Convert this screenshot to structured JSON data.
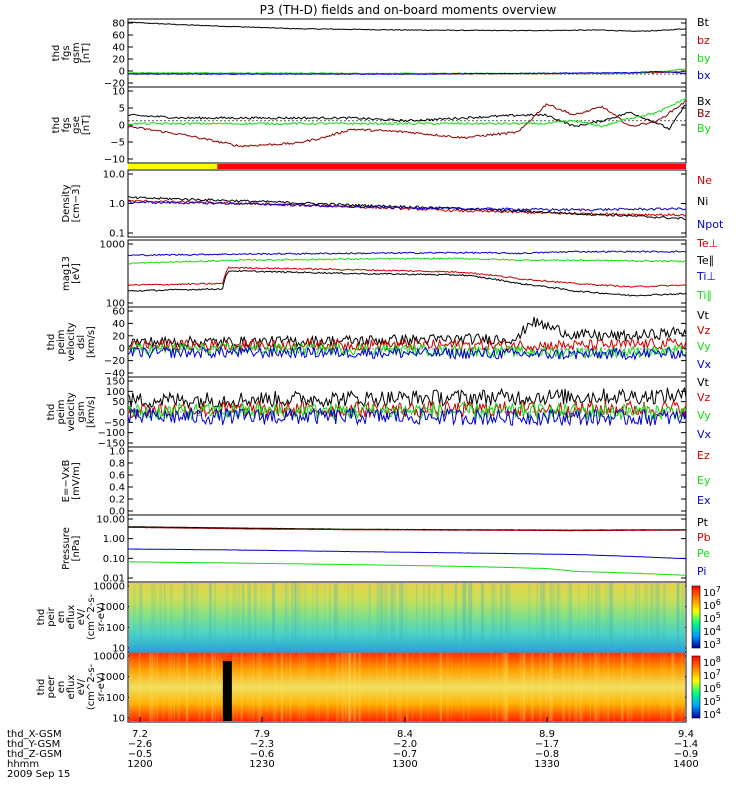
{
  "title": "P3 (TH-D) fields and on-board moments overview",
  "date_label": "2009 Sep 15",
  "colors": {
    "black": "#000000",
    "red": "#cc0000",
    "darkred": "#8b0000",
    "green": "#11dd11",
    "blue": "#0000cc",
    "yellow": "#ffff00",
    "barred": "#ff0000"
  },
  "chart_data": [
    {
      "type": "line",
      "panel": "fgs-gsm-total",
      "ylabel_lines": [
        "thd",
        "fgs",
        "gsm",
        "[nT]"
      ],
      "yticks": [
        "80",
        "60",
        "40",
        "20",
        "0",
        "−20"
      ],
      "ylim": [
        -20,
        85
      ],
      "series": [
        {
          "name": "Bt",
          "color": "#000000",
          "x": [
            0,
            0.1,
            0.3,
            0.5,
            0.7,
            0.85,
            0.9,
            0.95,
            1
          ],
          "y": [
            80,
            76,
            70,
            68,
            67,
            68,
            66,
            67,
            70
          ]
        },
        {
          "name": "bz",
          "color": "#cc0000",
          "x": [
            0,
            0.5,
            0.9,
            1
          ],
          "y": [
            1,
            0,
            1,
            4
          ]
        },
        {
          "name": "by",
          "color": "#11dd11",
          "x": [
            0,
            0.5,
            0.9,
            0.97,
            1
          ],
          "y": [
            2,
            1,
            1,
            5,
            8
          ]
        },
        {
          "name": "bx",
          "color": "#0000cc",
          "x": [
            0,
            0.5,
            0.9,
            0.95,
            1
          ],
          "y": [
            0,
            0,
            2,
            4,
            1
          ]
        }
      ],
      "legend": [
        "Bt",
        "bz",
        "by",
        "bx"
      ]
    },
    {
      "type": "line",
      "panel": "fgs-gse",
      "ylabel_lines": [
        "thd",
        "fgs",
        "gse",
        "[nT]"
      ],
      "yticks": [
        "10",
        "5",
        "0",
        "−5",
        "−10"
      ],
      "ylim": [
        -15,
        12
      ],
      "series": [
        {
          "name": "Bx",
          "color": "#000000",
          "x": [
            0,
            0.1,
            0.2,
            0.3,
            0.4,
            0.5,
            0.6,
            0.7,
            0.75,
            0.8,
            0.85,
            0.9,
            0.95,
            0.97,
            1
          ],
          "y": [
            2,
            1,
            1,
            1,
            1,
            0,
            1,
            2,
            2,
            -2,
            0,
            3,
            -1,
            -3,
            6
          ]
        },
        {
          "name": "Bz",
          "color": "#8b0000",
          "x": [
            0,
            0.1,
            0.2,
            0.3,
            0.35,
            0.4,
            0.5,
            0.6,
            0.7,
            0.75,
            0.8,
            0.85,
            0.9,
            0.95,
            1
          ],
          "y": [
            -2,
            -5,
            -9,
            -8,
            -6,
            -3,
            -4,
            -6,
            -4,
            6,
            2,
            5,
            -2,
            0,
            7
          ]
        },
        {
          "name": "By",
          "color": "#11dd11",
          "x": [
            0,
            0.2,
            0.4,
            0.6,
            0.7,
            0.75,
            0.8,
            0.85,
            0.9,
            0.95,
            1
          ],
          "y": [
            -1,
            -1,
            -1,
            -1,
            -1,
            -1,
            0,
            -2,
            1,
            3,
            8
          ]
        }
      ],
      "legend": [
        "Bx",
        "Bz",
        "By"
      ],
      "mode_bar": {
        "yellow_end_fraction": 0.16
      }
    },
    {
      "type": "line",
      "panel": "density",
      "log": true,
      "ylabel_lines": [
        "Density",
        "[cm−3]"
      ],
      "yticks": [
        "10.0",
        "1.0",
        "0.1"
      ],
      "ylim": [
        0.1,
        10
      ],
      "series": [
        {
          "name": "Ne",
          "color": "#cc0000",
          "x": [
            0,
            0.2,
            0.4,
            0.6,
            0.8,
            1
          ],
          "y": [
            1.2,
            1.0,
            0.8,
            0.6,
            0.5,
            0.45
          ]
        },
        {
          "name": "Ni",
          "color": "#000000",
          "x": [
            0,
            0.2,
            0.4,
            0.6,
            0.7,
            0.8,
            1
          ],
          "y": [
            1.5,
            1.2,
            0.9,
            0.7,
            0.6,
            0.5,
            0.35
          ]
        },
        {
          "name": "Npot",
          "color": "#0000cc",
          "x": [
            0,
            0.2,
            0.4,
            0.6,
            0.8,
            1
          ],
          "y": [
            1.1,
            1.0,
            0.8,
            0.7,
            0.65,
            0.7
          ]
        }
      ],
      "legend": [
        "Ne",
        "Ni",
        "Npot"
      ]
    },
    {
      "type": "line",
      "panel": "temperature",
      "log": true,
      "ylabel_lines": [
        "mag13",
        "[eV]"
      ],
      "yticks": [
        "1000",
        "100"
      ],
      "ylim": [
        100,
        10000
      ],
      "series": [
        {
          "name": "Te⊥",
          "color": "#cc0000",
          "x": [
            0,
            0.17,
            0.18,
            0.4,
            0.6,
            0.7,
            0.8,
            0.9,
            1
          ],
          "y": [
            450,
            500,
            1500,
            1300,
            1100,
            700,
            500,
            400,
            450
          ]
        },
        {
          "name": "Te∥",
          "color": "#000000",
          "x": [
            0,
            0.17,
            0.18,
            0.4,
            0.6,
            0.7,
            0.8,
            0.9,
            1
          ],
          "y": [
            300,
            350,
            1200,
            1000,
            900,
            500,
            300,
            220,
            250
          ]
        },
        {
          "name": "Ti⊥",
          "color": "#0000cc",
          "x": [
            0,
            0.2,
            0.4,
            0.6,
            0.7,
            0.8,
            1
          ],
          "y": [
            3500,
            3800,
            4000,
            4200,
            4000,
            4500,
            4500
          ]
        },
        {
          "name": "Ti∥",
          "color": "#11dd11",
          "x": [
            0,
            0.2,
            0.4,
            0.6,
            0.7,
            0.8,
            1
          ],
          "y": [
            2000,
            2500,
            2700,
            2800,
            2500,
            2500,
            2300
          ]
        }
      ],
      "legend": [
        "Te⊥",
        "Te∥",
        "Ti⊥",
        "Ti∥"
      ]
    },
    {
      "type": "line",
      "panel": "peim-velocity-dsl",
      "ylabel_lines": [
        "thd",
        "peim",
        "velocity",
        "dsl",
        "[km/s]"
      ],
      "yticks": [
        "60",
        "40",
        "20",
        "0",
        "−20",
        "−40"
      ],
      "ylim": [
        -40,
        60
      ],
      "series": [
        {
          "name": "Vt",
          "color": "#000000",
          "x": [
            0,
            0.2,
            0.4,
            0.7,
            0.72,
            0.8,
            0.9,
            1
          ],
          "y": [
            10,
            10,
            12,
            15,
            40,
            20,
            18,
            25
          ]
        },
        {
          "name": "Vz",
          "color": "#cc0000",
          "x": [
            0,
            0.4,
            0.8,
            1
          ],
          "y": [
            5,
            6,
            5,
            8
          ]
        },
        {
          "name": "Vy",
          "color": "#11dd11",
          "x": [
            0,
            0.4,
            0.8,
            1
          ],
          "y": [
            0,
            0,
            -5,
            -3
          ]
        },
        {
          "name": "Vx",
          "color": "#0000cc",
          "x": [
            0,
            0.4,
            0.8,
            1
          ],
          "y": [
            -5,
            -5,
            -8,
            -6
          ]
        }
      ],
      "legend": [
        "Vt",
        "Vz",
        "Vy",
        "Vx"
      ]
    },
    {
      "type": "line",
      "panel": "peim-velocity-gsm",
      "ylabel_lines": [
        "thd",
        "peim",
        "velocity",
        "gsm",
        "[km/s]"
      ],
      "yticks": [
        "150",
        "100",
        "50",
        "0",
        "−50",
        "−100",
        "−150"
      ],
      "ylim": [
        -150,
        150
      ],
      "series": [
        {
          "name": "Vt",
          "color": "#000000",
          "x": [
            0,
            0.5,
            1
          ],
          "y": [
            50,
            60,
            70
          ]
        },
        {
          "name": "Vz",
          "color": "#cc0000",
          "x": [
            0,
            0.5,
            1
          ],
          "y": [
            10,
            10,
            15
          ]
        },
        {
          "name": "Vy",
          "color": "#11dd11",
          "x": [
            0,
            0.5,
            1
          ],
          "y": [
            0,
            5,
            0
          ]
        },
        {
          "name": "Vx",
          "color": "#0000cc",
          "x": [
            0,
            0.5,
            1
          ],
          "y": [
            -20,
            -20,
            -25
          ]
        }
      ],
      "legend": [
        "Vt",
        "Vz",
        "Vy",
        "Vx"
      ]
    },
    {
      "type": "line",
      "panel": "efield",
      "ylabel_lines": [
        "E=−VxB",
        "[mV/m]"
      ],
      "yticks": [
        "1.0",
        "0.8",
        "0.6",
        "0.4",
        "0.2",
        "0.0"
      ],
      "ylim": [
        0,
        1
      ],
      "series": [],
      "legend": [
        "Ez",
        "Ey",
        "Ex"
      ]
    },
    {
      "type": "line",
      "panel": "pressure",
      "log": true,
      "ylabel_lines": [
        "Pressure",
        "[nPa]"
      ],
      "yticks": [
        "10.00",
        "1.00",
        "0.10",
        "0.01"
      ],
      "ylim": [
        0.01,
        10
      ],
      "series": [
        {
          "name": "Pt",
          "color": "#000000",
          "x": [
            0,
            0.2,
            0.4,
            0.6,
            0.8,
            1
          ],
          "y": [
            3.0,
            2.6,
            2.3,
            2.2,
            2.1,
            2.2
          ]
        },
        {
          "name": "Pb",
          "color": "#8b0000",
          "x": [
            0,
            0.2,
            0.4,
            0.6,
            0.8,
            1
          ],
          "y": [
            2.8,
            2.4,
            2.2,
            2.1,
            2.0,
            2.1
          ]
        },
        {
          "name": "Pe",
          "color": "#11dd11",
          "x": [
            0,
            0.2,
            0.4,
            0.6,
            0.75,
            0.8,
            0.9,
            1
          ],
          "y": [
            0.08,
            0.07,
            0.06,
            0.05,
            0.04,
            0.03,
            0.025,
            0.02
          ]
        },
        {
          "name": "Pi",
          "color": "#0000cc",
          "x": [
            0,
            0.2,
            0.4,
            0.6,
            0.8,
            1
          ],
          "y": [
            0.3,
            0.27,
            0.23,
            0.2,
            0.17,
            0.11
          ]
        }
      ],
      "legend": [
        "Pt",
        "Pb",
        "Pe",
        "Pi"
      ]
    },
    {
      "type": "heatmap",
      "panel": "peir-spectrogram",
      "ylabel_lines": [
        "thd",
        "peir",
        "en",
        "eflux",
        "eV/",
        "(cm^2-s-",
        "sr-eV)"
      ],
      "yticks": [
        "10000",
        "1000",
        "100",
        "10"
      ],
      "colorbar_ticks": [
        "10^7",
        "10^6",
        "10^5",
        "10^4",
        "10^3"
      ]
    },
    {
      "type": "heatmap",
      "panel": "peer-spectrogram",
      "ylabel_lines": [
        "thd",
        "peer",
        "en",
        "eflux",
        "eV/",
        "(cm^2-s-",
        "sr-eV)"
      ],
      "yticks": [
        "10000",
        "1000",
        "100",
        "10"
      ],
      "colorbar_ticks": [
        "10^8",
        "10^7",
        "10^6",
        "10^5",
        "10^4"
      ]
    }
  ],
  "ephemeris": {
    "labels": [
      "thd_X-GSM",
      "thd_Y-GSM",
      "thd_Z-GSM",
      "hhmm"
    ],
    "columns": [
      {
        "values": [
          "7.2",
          "−2.6",
          "−0.5",
          "1200"
        ]
      },
      {
        "values": [
          "7.9",
          "−2.3",
          "−0.6",
          "1230"
        ]
      },
      {
        "values": [
          "8.4",
          "−2.0",
          "−0.7",
          "1300"
        ]
      },
      {
        "values": [
          "8.9",
          "−1.7",
          "−0.8",
          "1330"
        ]
      },
      {
        "values": [
          "9.4",
          "−1.4",
          "−0.9",
          "1400"
        ]
      }
    ]
  }
}
